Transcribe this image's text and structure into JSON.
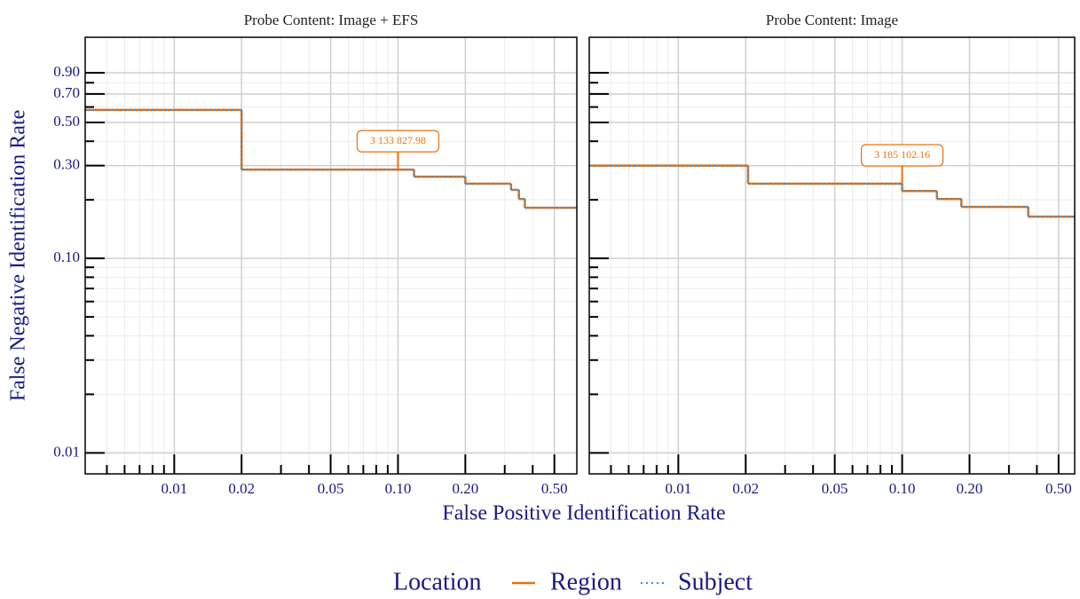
{
  "chart_data": [
    {
      "type": "step",
      "title": "Probe Content: Image + EFS",
      "xlabel": "False Positive Identification Rate",
      "ylabel": "False Negative Identification Rate",
      "legend_title": "Location",
      "log_x": true,
      "log_y": true,
      "grid": true,
      "xlim": [
        0.004,
        0.63
      ],
      "ylim": [
        0.0078,
        1.37
      ],
      "xticks": [
        0.01,
        0.02,
        0.05,
        {
          "value": 0.1,
          "label": "0.10"
        },
        {
          "value": 0.2,
          "label": "0.20"
        },
        {
          "value": 0.5,
          "label": "0.50"
        }
      ],
      "xminorticks": [
        0.005,
        0.006,
        0.007,
        0.008,
        0.009,
        0.03,
        0.04,
        0.06,
        0.07,
        0.08,
        0.09,
        0.3,
        0.4
      ],
      "yticks": [
        0.01,
        {
          "value": 0.1,
          "label": "0.10"
        },
        {
          "value": 0.3,
          "label": "0.30"
        },
        {
          "value": 0.5,
          "label": "0.50"
        },
        {
          "value": 0.7,
          "label": "0.70"
        },
        {
          "value": 0.9,
          "label": "0.90"
        }
      ],
      "yminorticks": [
        0.02,
        0.03,
        0.04,
        0.05,
        0.06,
        0.07,
        0.08,
        0.09,
        0.2,
        0.4,
        0.6,
        0.8
      ],
      "series": [
        {
          "name": "Region",
          "color": "#e8700f",
          "x": [
            0.004,
            0.02,
            0.118,
            0.2,
            0.32,
            0.347,
            0.369
          ],
          "values": [
            0.58,
            0.286,
            0.263,
            0.242,
            0.225,
            0.202,
            0.182
          ]
        },
        {
          "name": "Subject",
          "color": "#3a8fd0",
          "x": [
            0.004,
            0.02,
            0.118,
            0.2,
            0.32,
            0.347,
            0.369
          ],
          "values": [
            0.58,
            0.286,
            0.263,
            0.242,
            0.225,
            0.202,
            0.182
          ]
        }
      ],
      "annotation": {
        "text": "3 133 827.98",
        "x": 0.1,
        "y": 0.286
      }
    },
    {
      "type": "step",
      "title": "Probe Content: Image",
      "log_x": true,
      "log_y": true,
      "grid": true,
      "xlim": [
        0.004,
        0.59
      ],
      "ylim": [
        0.0078,
        1.37
      ],
      "xticks": [
        0.01,
        0.02,
        0.05,
        {
          "value": 0.1,
          "label": "0.10"
        },
        {
          "value": 0.2,
          "label": "0.20"
        },
        {
          "value": 0.5,
          "label": "0.50"
        }
      ],
      "xminorticks": [
        0.005,
        0.006,
        0.007,
        0.008,
        0.009,
        0.03,
        0.04,
        0.06,
        0.07,
        0.08,
        0.09,
        0.3,
        0.4
      ],
      "yticks": [
        0.01,
        0.1,
        0.3,
        0.5,
        0.7,
        0.9
      ],
      "yminorticks": [
        0.02,
        0.03,
        0.04,
        0.05,
        0.06,
        0.07,
        0.08,
        0.09,
        0.2,
        0.4,
        0.6,
        0.8
      ],
      "series": [
        {
          "name": "Region",
          "color": "#e8700f",
          "x": [
            0.004,
            0.0205,
            0.1,
            0.143,
            0.184,
            0.366
          ],
          "values": [
            0.3,
            0.242,
            0.222,
            0.202,
            0.184,
            0.164
          ]
        },
        {
          "name": "Subject",
          "color": "#3a8fd0",
          "x": [
            0.004,
            0.0205,
            0.1,
            0.143,
            0.184,
            0.366
          ],
          "values": [
            0.3,
            0.242,
            0.222,
            0.202,
            0.184,
            0.164
          ]
        }
      ],
      "annotation": {
        "text": "3 185 102.16",
        "x": 0.1,
        "y": 0.242
      }
    }
  ]
}
